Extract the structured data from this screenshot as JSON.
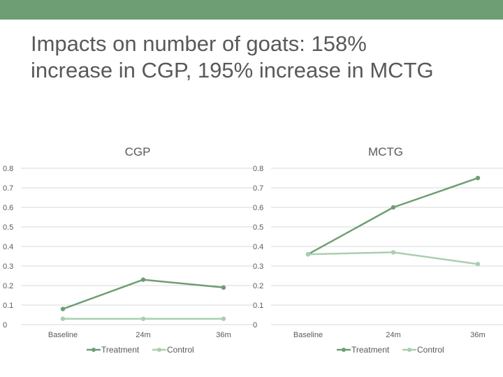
{
  "slide": {
    "title_line1": "Impacts on number of goats: 158%",
    "title_line2": "increase in CGP, 195% increase in MCTG",
    "band_color": "#6e9e74"
  },
  "colors": {
    "treatment": "#6e9e74",
    "control": "#a9cfae",
    "grid": "#d9d9d9",
    "text": "#595959"
  },
  "chart_data": [
    {
      "type": "line",
      "title": "CGP",
      "categories": [
        "Baseline",
        "24m",
        "36m"
      ],
      "y_ticks": [
        "0",
        "0.1",
        "0.2",
        "0.3",
        "0.4",
        "0.5",
        "0.6",
        "0.7",
        "0.8"
      ],
      "ylim": [
        0,
        0.8
      ],
      "grid": true,
      "legend": "bottom",
      "series": [
        {
          "name": "Treatment",
          "values": [
            0.08,
            0.23,
            0.19
          ]
        },
        {
          "name": "Control",
          "values": [
            0.03,
            0.03,
            0.03
          ]
        }
      ]
    },
    {
      "type": "line",
      "title": "MCTG",
      "categories": [
        "Baseline",
        "24m",
        "36m"
      ],
      "y_ticks": [
        "0",
        "0.1",
        "0.2",
        "0.3",
        "0.4",
        "0.5",
        "0.6",
        "0.7",
        "0.8"
      ],
      "ylim": [
        0,
        0.8
      ],
      "grid": true,
      "legend": "bottom",
      "series": [
        {
          "name": "Treatment",
          "values": [
            0.36,
            0.6,
            0.75
          ]
        },
        {
          "name": "Control",
          "values": [
            0.36,
            0.37,
            0.31
          ]
        }
      ]
    }
  ]
}
